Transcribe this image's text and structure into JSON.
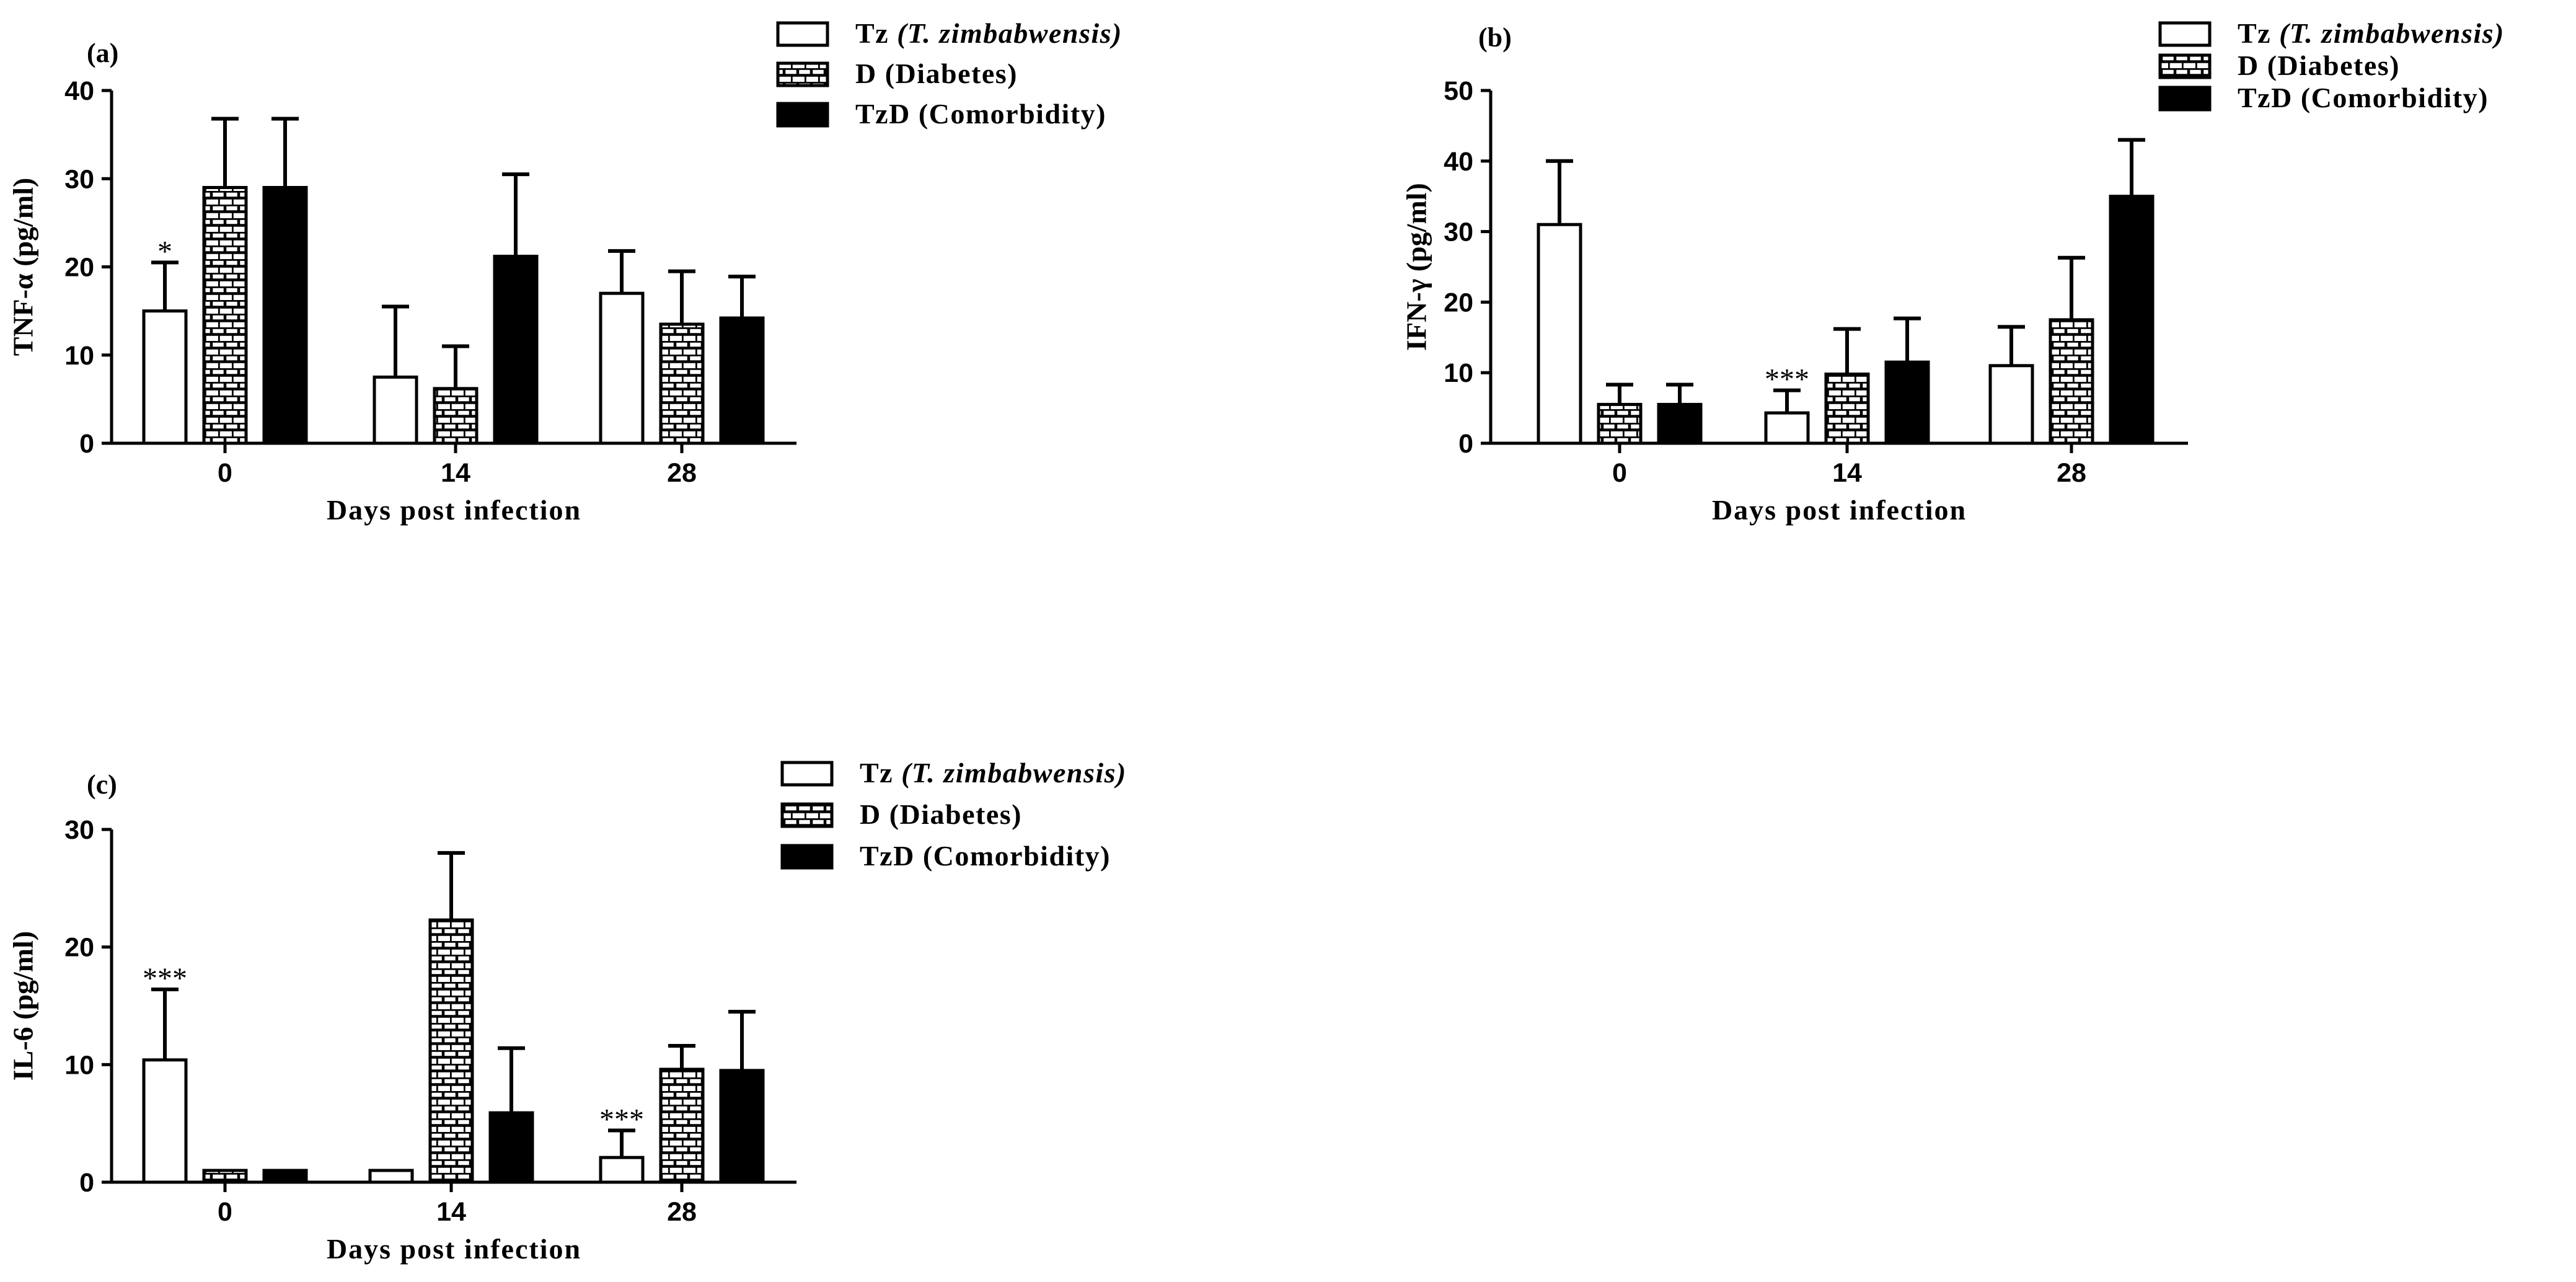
{
  "chart_data": [
    {
      "type": "bar",
      "panel_label": "(a)",
      "ylabel": "TNF-α (pg/ml)",
      "xlabel": "Days post infection",
      "categories": [
        "0",
        "14",
        "28"
      ],
      "ylim": [
        0,
        40
      ],
      "yticks": [
        "0",
        "10",
        "20",
        "30",
        "40"
      ],
      "grid": false,
      "legend_position": "top-right",
      "series": [
        {
          "name": "Tz",
          "name_italic": "(T. zimbabwensis)",
          "fill": "white",
          "values": [
            15,
            7.5,
            17
          ],
          "errors": [
            5.5,
            8,
            4.8
          ]
        },
        {
          "name": "D (Diabetes)",
          "fill": "brick",
          "values": [
            29,
            6.2,
            13.5
          ],
          "errors": [
            7.8,
            4.8,
            6
          ]
        },
        {
          "name": "TzD (Comorbidity)",
          "fill": "black",
          "values": [
            29,
            21.2,
            14.2
          ],
          "errors": [
            7.8,
            9.3,
            4.7
          ]
        }
      ],
      "annotations": [
        {
          "category": 0,
          "series": 0,
          "text": "*"
        }
      ]
    },
    {
      "type": "bar",
      "panel_label": "(b)",
      "ylabel": "IFN-γ (pg/ml)",
      "xlabel": "Days post infection",
      "categories": [
        "0",
        "14",
        "28"
      ],
      "ylim": [
        0,
        50
      ],
      "yticks": [
        "0",
        "10",
        "20",
        "30",
        "40",
        "50"
      ],
      "grid": false,
      "legend_position": "top-right",
      "series": [
        {
          "name": "Tz",
          "name_italic": "(T. zimbabwensis)",
          "fill": "white",
          "values": [
            31,
            4.3,
            11
          ],
          "errors": [
            9,
            3.2,
            5.5
          ]
        },
        {
          "name": "D (Diabetes)",
          "fill": "brick",
          "values": [
            5.5,
            9.8,
            17.5
          ],
          "errors": [
            2.8,
            6.4,
            8.8
          ]
        },
        {
          "name": "TzD (Comorbidity)",
          "fill": "black",
          "values": [
            5.5,
            11.5,
            35
          ],
          "errors": [
            2.8,
            6.2,
            8
          ]
        }
      ],
      "annotations": [
        {
          "category": 1,
          "series": 0,
          "text": "***"
        }
      ]
    },
    {
      "type": "bar",
      "panel_label": "(c)",
      "ylabel": "IL-6 (pg/ml)",
      "xlabel": "Days post infection",
      "categories": [
        "0",
        "14",
        "28"
      ],
      "ylim": [
        0,
        30
      ],
      "yticks": [
        "0",
        "10",
        "20",
        "30"
      ],
      "grid": false,
      "legend_position": "top-right",
      "series": [
        {
          "name": "Tz",
          "name_italic": "(T. zimbabwensis)",
          "fill": "white",
          "values": [
            10.4,
            1,
            2.1
          ],
          "errors": [
            6,
            0,
            2.3
          ]
        },
        {
          "name": "D (Diabetes)",
          "fill": "brick",
          "values": [
            1,
            22.3,
            9.6
          ],
          "errors": [
            0,
            5.7,
            2
          ]
        },
        {
          "name": "TzD (Comorbidity)",
          "fill": "black",
          "values": [
            1,
            5.9,
            9.5
          ],
          "errors": [
            0,
            5.5,
            5
          ]
        }
      ],
      "annotations": [
        {
          "category": 0,
          "series": 0,
          "text": "***"
        },
        {
          "category": 2,
          "series": 0,
          "text": "***"
        }
      ]
    }
  ]
}
